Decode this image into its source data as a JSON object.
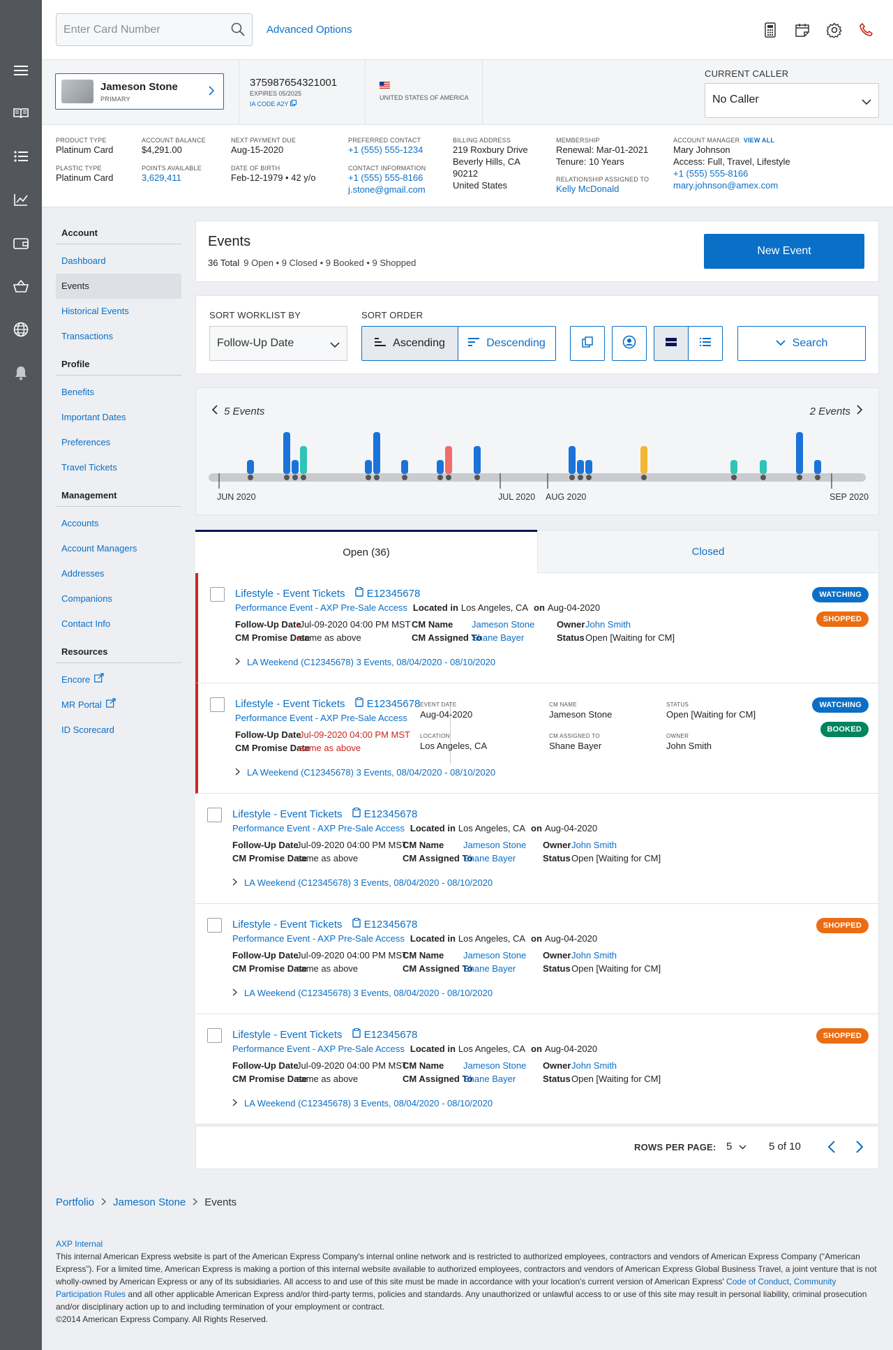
{
  "search": {
    "placeholder": "Enter Card Number",
    "advanced_label": "Advanced Options"
  },
  "card": {
    "holder": "Jameson Stone",
    "role": "PRIMARY",
    "number": "375987654321001",
    "expires": "EXPIRES 05/2025",
    "ia_code": "IA CODE A2Y",
    "country": "UNITED STATES OF AMERICA"
  },
  "caller": {
    "label": "CURRENT CALLER",
    "value": "No Caller"
  },
  "account": {
    "product_type_label": "PRODUCT TYPE",
    "product_type": "Platinum Card",
    "plastic_type_label": "PLASTIC TYPE",
    "plastic_type": "Platinum Card",
    "balance_label": "ACCOUNT BALANCE",
    "balance": "$4,291.00",
    "points_label": "POINTS AVAILABLE",
    "points": "3,629,411",
    "next_payment_label": "NEXT PAYMENT DUE",
    "next_payment": "Aug-15-2020",
    "dob_label": "DATE OF BIRTH",
    "dob": "Feb-12-1979 • 42 y/o",
    "pref_contact_label": "PREFERRED CONTACT",
    "pref_contact": "+1 (555) 555-1234",
    "contact_info_label": "CONTACT INFORMATION",
    "contact_phone": "+1 (555) 555-8166",
    "contact_email": "j.stone@gmail.com",
    "billing_label": "BILLING ADDRESS",
    "billing_lines": [
      "219 Roxbury Drive",
      "Beverly Hills, CA",
      "90212",
      "United States"
    ],
    "membership_label": "MEMBERSHIP",
    "renewal": "Renewal: Mar-01-2021",
    "tenure": "Tenure: 10 Years",
    "relationship_label": "RELATIONSHIP ASSIGNED TO",
    "relationship": "Kelly McDonald",
    "manager_label": "ACCOUNT MANAGER",
    "view_all": "VIEW ALL",
    "manager_name": "Mary Johnson",
    "manager_access": "Access: Full, Travel, Lifestyle",
    "manager_phone": "+1 (555) 555-8166",
    "manager_email": "mary.johnson@amex.com"
  },
  "nav": [
    {
      "heading": "Account",
      "items": [
        {
          "label": "Dashboard"
        },
        {
          "label": "Events",
          "active": true
        },
        {
          "label": "Historical Events"
        },
        {
          "label": "Transactions"
        }
      ]
    },
    {
      "heading": "Profile",
      "items": [
        {
          "label": "Benefits"
        },
        {
          "label": "Important Dates"
        },
        {
          "label": "Preferences"
        },
        {
          "label": "Travel Tickets"
        }
      ]
    },
    {
      "heading": "Management",
      "items": [
        {
          "label": "Accounts"
        },
        {
          "label": "Account Managers"
        },
        {
          "label": "Addresses"
        },
        {
          "label": "Companions"
        },
        {
          "label": "Contact Info"
        }
      ]
    },
    {
      "heading": "Resources",
      "items": [
        {
          "label": "Encore",
          "ext": true
        },
        {
          "label": "MR Portal",
          "ext": true
        },
        {
          "label": "ID Scorecard"
        }
      ]
    }
  ],
  "events": {
    "title": "Events",
    "total": "36 Total",
    "summary": "9 Open • 9 Closed • 9 Booked • 9 Shopped",
    "new_button": "New Event"
  },
  "sort": {
    "by_label": "SORT WORKLIST BY",
    "by_value": "Follow-Up Date",
    "order_label": "SORT ORDER",
    "ascending": "Ascending",
    "descending": "Descending",
    "search_label": "Search"
  },
  "timeline": {
    "prev_label": "5 Events",
    "next_label": "2 Events",
    "months": [
      "JUN 2020",
      "JUL 2020",
      "AUG 2020",
      "SEP 2020"
    ],
    "colors": {
      "blue": "#1a73d9",
      "teal": "#2ec4b6",
      "red": "#f26b6b",
      "yellow": "#f5b731"
    }
  },
  "tabs": {
    "open": "Open (36)",
    "closed": "Closed"
  },
  "rows": [
    {
      "title": "Lifestyle - Event Tickets",
      "id": "E12345678",
      "program": "Performance Event - AXP Pre-Sale Access",
      "located_label": "Located in",
      "location": "Los Angeles, CA",
      "on_label": "on",
      "date": "Aug-04-2020",
      "followup_label": "Follow-Up Date",
      "followup": "Jul-09-2020 04:00 PM MST",
      "promise_label": "CM Promise Date",
      "promise": "same as above",
      "cm_name_label": "CM Name",
      "cm_name": "Jameson Stone",
      "cm_assigned_label": "CM Assigned To",
      "cm_assigned": "Shane Bayer",
      "owner_label": "Owner",
      "owner": "John Smith",
      "status_label": "Status",
      "status": "Open [Waiting for CM]",
      "trip": "LA Weekend (C12345678) 3 Events, 08/04/2020 - 08/10/2020",
      "badges": [
        "WATCHING",
        "SHOPPED"
      ]
    },
    {
      "title": "Lifestyle - Event Tickets",
      "id": "E12345678",
      "program": "Performance Event - AXP Pre-Sale Access",
      "followup_label": "Follow-Up Date",
      "followup": "Jul-09-2020 04:00 PM MST",
      "promise_label": "CM Promise Date",
      "promise": "same as above",
      "event_date_label": "EVENT DATE",
      "event_date": "Aug-04-2020",
      "location_label": "LOCATION",
      "location": "Los Angeles, CA",
      "cm_name_label": "CM NAME",
      "cm_name": "Jameson Stone",
      "cm_assigned_label": "CM ASSIGNED TO",
      "cm_assigned": "Shane Bayer",
      "status_label": "STATUS",
      "status": "Open [Waiting for CM]",
      "owner_label": "OWNER",
      "owner": "John Smith",
      "trip": "LA Weekend (C12345678) 3 Events, 08/04/2020 - 08/10/2020",
      "badges": [
        "WATCHING",
        "BOOKED"
      ]
    },
    {
      "title": "Lifestyle - Event Tickets",
      "id": "E12345678",
      "program": "Performance Event - AXP Pre-Sale Access",
      "located_label": "Located in",
      "location": "Los Angeles, CA",
      "on_label": "on",
      "date": "Aug-04-2020",
      "followup_label": "Follow-Up Date",
      "followup": "Jul-09-2020 04:00 PM MST",
      "promise_label": "CM Promise Date",
      "promise": "same as above",
      "cm_name_label": "CM Name",
      "cm_name": "Jameson Stone",
      "cm_assigned_label": "CM Assigned To",
      "cm_assigned": "Shane Bayer",
      "owner_label": "Owner",
      "owner": "John Smith",
      "status_label": "Status",
      "status": "Open [Waiting for CM]",
      "trip": "LA Weekend (C12345678) 3 Events, 08/04/2020 - 08/10/2020",
      "badges": []
    },
    {
      "title": "Lifestyle - Event Tickets",
      "id": "E12345678",
      "program": "Performance Event - AXP Pre-Sale Access",
      "located_label": "Located in",
      "location": "Los Angeles, CA",
      "on_label": "on",
      "date": "Aug-04-2020",
      "followup_label": "Follow-Up Date",
      "followup": "Jul-09-2020 04:00 PM MST",
      "promise_label": "CM Promise Date",
      "promise": "same as above",
      "cm_name_label": "CM Name",
      "cm_name": "Jameson Stone",
      "cm_assigned_label": "CM Assigned To",
      "cm_assigned": "Shane Bayer",
      "owner_label": "Owner",
      "owner": "John Smith",
      "status_label": "Status",
      "status": "Open [Waiting for CM]",
      "trip": "LA Weekend (C12345678) 3 Events, 08/04/2020 - 08/10/2020",
      "badges": [
        "SHOPPED"
      ]
    },
    {
      "title": "Lifestyle - Event Tickets",
      "id": "E12345678",
      "program": "Performance Event - AXP Pre-Sale Access",
      "located_label": "Located in",
      "location": "Los Angeles, CA",
      "on_label": "on",
      "date": "Aug-04-2020",
      "followup_label": "Follow-Up Date",
      "followup": "Jul-09-2020 04:00 PM MST",
      "promise_label": "CM Promise Date",
      "promise": "same as above",
      "cm_name_label": "CM Name",
      "cm_name": "Jameson Stone",
      "cm_assigned_label": "CM Assigned To",
      "cm_assigned": "Shane Bayer",
      "owner_label": "Owner",
      "owner": "John Smith",
      "status_label": "Status",
      "status": "Open [Waiting for CM]",
      "trip": "LA Weekend (C12345678) 3 Events, 08/04/2020 - 08/10/2020",
      "badges": [
        "SHOPPED"
      ]
    }
  ],
  "badge_colors": {
    "WATCHING": "#0a6fc7",
    "SHOPPED": "#ec6c12",
    "BOOKED": "#00855f"
  },
  "pager": {
    "rows_label": "ROWS PER PAGE:",
    "rows_value": "5",
    "range": "5 of 10"
  },
  "breadcrumb": [
    "Portfolio",
    "Jameson Stone",
    "Events"
  ],
  "footer": {
    "title": "AXP Internal",
    "text1": "This internal American Express website is part of the American Express Company's internal online network and is restricted to authorized employees, contractors and vendors of American Express Company (“American Express”). For a limited time, American Express is making a portion of this internal website available to authorized employees, contractors and vendors of American Express Global Business Travel, a joint venture that is not wholly-owned by American Express or any of its subsidiaries. All access to and use of this site must be made in accordance with your location's current version of American Express'",
    "code_link": "Code of Conduct",
    "comma": ",",
    "rules_link": "Community Participation Rules",
    "text2": "and all other applicable American Express and/or third-party terms, policies and standards. Any unauthorized or unlawful access to or use of this site may result in personal liability, criminal prosecution and/or disciplinary action up to and including termination of your employment or contract.",
    "copyright": "©2014 American Express Company. All Rights Reserved."
  }
}
